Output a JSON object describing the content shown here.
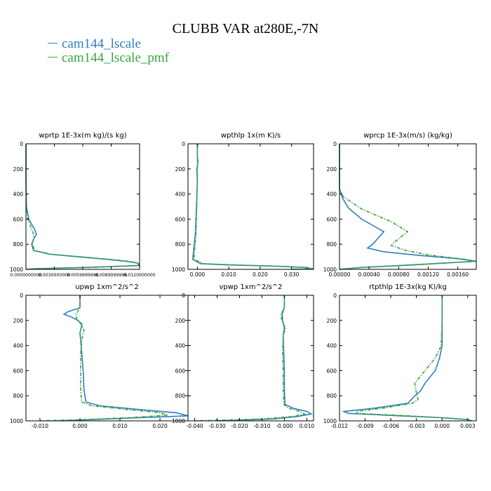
{
  "title": "CLUBB VAR at280E,-7N",
  "legend": [
    {
      "label": "cam144_lscale",
      "color": "#2f7ebf"
    },
    {
      "label": "cam144_lscale_pmf",
      "color": "#3aa63a"
    }
  ],
  "chart_data": [
    {
      "type": "line",
      "title": "wprtp  1E-3x(m kg)/(s kg)",
      "xlim": [
        0,
        0.012
      ],
      "ylim": [
        1000,
        0
      ],
      "xticks": [
        0,
        0.003,
        0.006,
        0.009,
        0.012
      ],
      "xtick_labels": [
        "0.0000000000",
        "0.0030000000",
        "0.0059999996",
        "0.0089999996",
        "0.0120000000"
      ],
      "yticks": [
        0,
        200,
        400,
        600,
        800,
        1000
      ],
      "series": [
        {
          "color": "#2f7ebf",
          "dash": false,
          "points": [
            [
              0,
              0
            ],
            [
              0,
              100
            ],
            [
              0,
              300
            ],
            [
              5e-05,
              500
            ],
            [
              0.0003,
              600
            ],
            [
              0.0009,
              680
            ],
            [
              0.0011,
              720
            ],
            [
              0.0008,
              760
            ],
            [
              0.0006,
              800
            ],
            [
              0.0008,
              850
            ],
            [
              0.0025,
              880
            ],
            [
              0.0055,
              900
            ],
            [
              0.0085,
              920
            ],
            [
              0.0105,
              935
            ],
            [
              0.0118,
              950
            ],
            [
              0.0119,
              970
            ],
            [
              0.006,
              985
            ],
            [
              0.001,
              995
            ],
            [
              0,
              1000
            ]
          ]
        },
        {
          "color": "#3aa63a",
          "dash": true,
          "points": [
            [
              0,
              0
            ],
            [
              0,
              100
            ],
            [
              0,
              300
            ],
            [
              5e-05,
              500
            ],
            [
              0.0002,
              600
            ],
            [
              0.0006,
              680
            ],
            [
              0.0008,
              720
            ],
            [
              0.0008,
              760
            ],
            [
              0.0007,
              800
            ],
            [
              0.0009,
              850
            ],
            [
              0.0027,
              880
            ],
            [
              0.0058,
              900
            ],
            [
              0.0088,
              920
            ],
            [
              0.0108,
              935
            ],
            [
              0.0119,
              950
            ],
            [
              0.012,
              970
            ],
            [
              0.007,
              985
            ],
            [
              0.001,
              995
            ],
            [
              0,
              1000
            ]
          ]
        }
      ]
    },
    {
      "type": "line",
      "title": "wpthlp  1x(m K)/s",
      "xlim": [
        -0.003,
        0.037
      ],
      "ylim": [
        1000,
        0
      ],
      "xticks": [
        0,
        0.01,
        0.02,
        0.03
      ],
      "xtick_labels": [
        "0.000",
        "0.010",
        "0.020",
        "0.030"
      ],
      "yticks": [
        0,
        200,
        400,
        600,
        800,
        1000
      ],
      "series": [
        {
          "color": "#2f7ebf",
          "dash": false,
          "points": [
            [
              0,
              0
            ],
            [
              0,
              100
            ],
            [
              0.0002,
              150
            ],
            [
              -0.0002,
              200
            ],
            [
              0,
              300
            ],
            [
              -0.0003,
              500
            ],
            [
              -0.0006,
              700
            ],
            [
              -0.0012,
              850
            ],
            [
              -0.0015,
              920
            ],
            [
              0.001,
              955
            ],
            [
              0.01,
              965
            ],
            [
              0.025,
              975
            ],
            [
              0.034,
              985
            ],
            [
              0.036,
              995
            ],
            [
              0.03,
              1000
            ]
          ]
        },
        {
          "color": "#3aa63a",
          "dash": true,
          "points": [
            [
              0,
              0
            ],
            [
              0,
              100
            ],
            [
              0,
              150
            ],
            [
              0,
              200
            ],
            [
              0,
              300
            ],
            [
              -0.0002,
              500
            ],
            [
              -0.0004,
              700
            ],
            [
              -0.0009,
              850
            ],
            [
              -0.0011,
              920
            ],
            [
              0.002,
              955
            ],
            [
              0.012,
              965
            ],
            [
              0.026,
              975
            ],
            [
              0.035,
              985
            ],
            [
              0.037,
              995
            ],
            [
              0.03,
              1000
            ]
          ]
        }
      ]
    },
    {
      "type": "line",
      "title": "wprcp  1E-3x(m/s) (kg/kg)",
      "xlim": [
        0,
        0.00185
      ],
      "ylim": [
        1000,
        0
      ],
      "xticks": [
        0,
        0.0004,
        0.0008,
        0.0012,
        0.0016
      ],
      "xtick_labels": [
        "0.00000",
        "0.00040",
        "0.00080",
        "0.00120",
        "0.00160"
      ],
      "yticks": [
        0,
        200,
        400,
        600,
        800,
        1000
      ],
      "series": [
        {
          "color": "#2f7ebf",
          "dash": false,
          "points": [
            [
              0,
              0
            ],
            [
              0,
              200
            ],
            [
              0,
              360
            ],
            [
              4e-05,
              430
            ],
            [
              0.00012,
              510
            ],
            [
              0.0003,
              600
            ],
            [
              0.0006,
              700
            ],
            [
              0.00045,
              800
            ],
            [
              0.00038,
              830
            ],
            [
              0.0006,
              860
            ],
            [
              0.0011,
              890
            ],
            [
              0.0016,
              915
            ],
            [
              0.00185,
              935
            ],
            [
              0.001,
              965
            ],
            [
              0.0003,
              985
            ],
            [
              0,
              1000
            ]
          ]
        },
        {
          "color": "#3aa63a",
          "dash": true,
          "points": [
            [
              0,
              0
            ],
            [
              0,
              200
            ],
            [
              0,
              360
            ],
            [
              5e-05,
              420
            ],
            [
              0.0003,
              520
            ],
            [
              0.0007,
              620
            ],
            [
              0.00092,
              700
            ],
            [
              0.00075,
              780
            ],
            [
              0.0007,
              810
            ],
            [
              0.0009,
              850
            ],
            [
              0.0012,
              885
            ],
            [
              0.0017,
              920
            ],
            [
              0.00185,
              935
            ],
            [
              0.0011,
              960
            ],
            [
              0.0003,
              985
            ],
            [
              0,
              1000
            ]
          ]
        }
      ]
    },
    {
      "type": "line",
      "title": "upwp  1xm^2/s^2",
      "xlim": [
        -0.0135,
        0.027
      ],
      "ylim": [
        1000,
        0
      ],
      "xticks": [
        -0.01,
        0,
        0.01,
        0.02
      ],
      "xtick_labels": [
        "-0.010",
        "0.000",
        "0.010",
        "0.020"
      ],
      "yticks": [
        0,
        200,
        400,
        600,
        800,
        1000
      ],
      "series": [
        {
          "color": "#2f7ebf",
          "dash": false,
          "points": [
            [
              0,
              0
            ],
            [
              0,
              100
            ],
            [
              -0.003,
              130
            ],
            [
              -0.004,
              150
            ],
            [
              -0.002,
              175
            ],
            [
              -0.0005,
              200
            ],
            [
              0.0005,
              230
            ],
            [
              0,
              300
            ],
            [
              0.0003,
              400
            ],
            [
              0.0008,
              600
            ],
            [
              0.001,
              750
            ],
            [
              0.0015,
              850
            ],
            [
              0.005,
              880
            ],
            [
              0.015,
              910
            ],
            [
              0.024,
              935
            ],
            [
              0.027,
              960
            ],
            [
              0.015,
              975
            ],
            [
              0.003,
              990
            ],
            [
              -0.005,
              1000
            ]
          ]
        },
        {
          "color": "#3aa63a",
          "dash": true,
          "points": [
            [
              0,
              0
            ],
            [
              0,
              100
            ],
            [
              -0.001,
              150
            ],
            [
              -0.0008,
              190
            ],
            [
              0.0005,
              240
            ],
            [
              0.001,
              280
            ],
            [
              0.0005,
              350
            ],
            [
              0.0002,
              450
            ],
            [
              0.0002,
              600
            ],
            [
              0.0002,
              750
            ],
            [
              0.0004,
              850
            ],
            [
              0.003,
              880
            ],
            [
              0.012,
              910
            ],
            [
              0.02,
              935
            ],
            [
              0.022,
              955
            ],
            [
              0.012,
              975
            ],
            [
              0.001,
              990
            ],
            [
              -0.01,
              1000
            ]
          ]
        }
      ]
    },
    {
      "type": "line",
      "title": "vpwp  1xm^2/s^2",
      "xlim": [
        -0.043,
        0.013
      ],
      "ylim": [
        1000,
        0
      ],
      "xticks": [
        -0.04,
        -0.03,
        -0.02,
        -0.01,
        0,
        0.01
      ],
      "xtick_labels": [
        "-0.040",
        "-0.030",
        "-0.020",
        "-0.010",
        "-0.000",
        "0.010"
      ],
      "yticks": [
        0,
        200,
        400,
        600,
        800,
        1000
      ],
      "series": [
        {
          "color": "#2f7ebf",
          "dash": false,
          "points": [
            [
              0,
              0
            ],
            [
              0,
              100
            ],
            [
              -0.001,
              150
            ],
            [
              -0.0008,
              200
            ],
            [
              0,
              260
            ],
            [
              -0.0005,
              320
            ],
            [
              -0.0003,
              450
            ],
            [
              0,
              600
            ],
            [
              0,
              750
            ],
            [
              0.0003,
              870
            ],
            [
              0.004,
              900
            ],
            [
              0.01,
              925
            ],
            [
              0.012,
              945
            ],
            [
              0.006,
              965
            ],
            [
              -0.005,
              985
            ],
            [
              -0.02,
              995
            ],
            [
              -0.03,
              1000
            ]
          ]
        },
        {
          "color": "#3aa63a",
          "dash": true,
          "points": [
            [
              0,
              0
            ],
            [
              0,
              100
            ],
            [
              -0.0015,
              150
            ],
            [
              -0.0012,
              200
            ],
            [
              0.0005,
              260
            ],
            [
              -0.0005,
              320
            ],
            [
              -0.0008,
              450
            ],
            [
              -0.0005,
              600
            ],
            [
              -0.0005,
              750
            ],
            [
              -0.0002,
              870
            ],
            [
              0.002,
              900
            ],
            [
              0.007,
              925
            ],
            [
              0.009,
              945
            ],
            [
              0.004,
              965
            ],
            [
              -0.01,
              985
            ],
            [
              -0.03,
              995
            ],
            [
              -0.04,
              1000
            ]
          ]
        }
      ]
    },
    {
      "type": "line",
      "title": "rtpthlp  1E-3x(kg K)/kg",
      "xlim": [
        -0.012,
        0.004
      ],
      "ylim": [
        1000,
        0
      ],
      "xticks": [
        -0.012,
        -0.009,
        -0.006,
        -0.003,
        0,
        0.003
      ],
      "xtick_labels": [
        "-0.012",
        "-0.009",
        "-0.006",
        "-0.003",
        "0.000",
        "0.003"
      ],
      "yticks": [
        0,
        200,
        400,
        600,
        800,
        1000
      ],
      "series": [
        {
          "color": "#2f7ebf",
          "dash": false,
          "points": [
            [
              0,
              0
            ],
            [
              0,
              200
            ],
            [
              0,
              400
            ],
            [
              -0.0003,
              500
            ],
            [
              -0.0008,
              600
            ],
            [
              -0.002,
              700
            ],
            [
              -0.0025,
              760
            ],
            [
              -0.0032,
              800
            ],
            [
              -0.004,
              860
            ],
            [
              -0.008,
              900
            ],
            [
              -0.0115,
              925
            ],
            [
              -0.011,
              940
            ],
            [
              -0.005,
              960
            ],
            [
              0,
              975
            ],
            [
              0.003,
              990
            ],
            [
              0.0035,
              1000
            ]
          ]
        },
        {
          "color": "#3aa63a",
          "dash": true,
          "points": [
            [
              0,
              0
            ],
            [
              0,
              200
            ],
            [
              -0.0001,
              400
            ],
            [
              -0.0008,
              500
            ],
            [
              -0.002,
              600
            ],
            [
              -0.0032,
              700
            ],
            [
              -0.003,
              780
            ],
            [
              -0.0028,
              830
            ],
            [
              -0.0035,
              860
            ],
            [
              -0.007,
              900
            ],
            [
              -0.01,
              925
            ],
            [
              -0.01,
              940
            ],
            [
              -0.004,
              960
            ],
            [
              0,
              975
            ],
            [
              0.003,
              990
            ],
            [
              0.0035,
              1000
            ]
          ]
        }
      ]
    }
  ]
}
